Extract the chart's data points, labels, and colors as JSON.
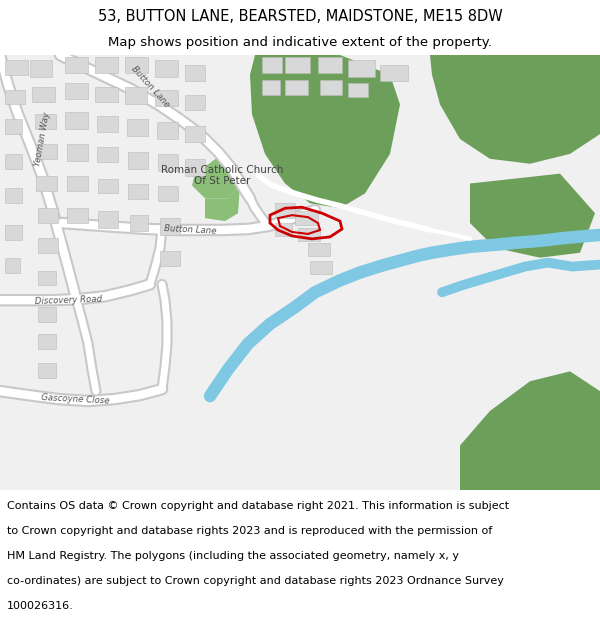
{
  "title_line1": "53, BUTTON LANE, BEARSTED, MAIDSTONE, ME15 8DW",
  "title_line2": "Map shows position and indicative extent of the property.",
  "footer_text": "Contains OS data © Crown copyright and database right 2021. This information is subject to Crown copyright and database rights 2023 and is reproduced with the permission of HM Land Registry. The polygons (including the associated geometry, namely x, y co-ordinates) are subject to Crown copyright and database rights 2023 Ordnance Survey 100026316.",
  "bg_color": "#f0f0f0",
  "road_color": "#ffffff",
  "road_outline": "#c8c8c8",
  "building_fill": "#d8d8d8",
  "building_outline": "#bbbbbb",
  "green_dark": "#6b9f5a",
  "green_light": "#9fc88a",
  "river_color": "#7ec8e3",
  "plot_color": "#cc0000",
  "white_path": "#ffffff",
  "title_fontsize": 10.5,
  "subtitle_fontsize": 9.5,
  "footer_fontsize": 8.0,
  "label_color": "#555555",
  "title_weight": "normal"
}
